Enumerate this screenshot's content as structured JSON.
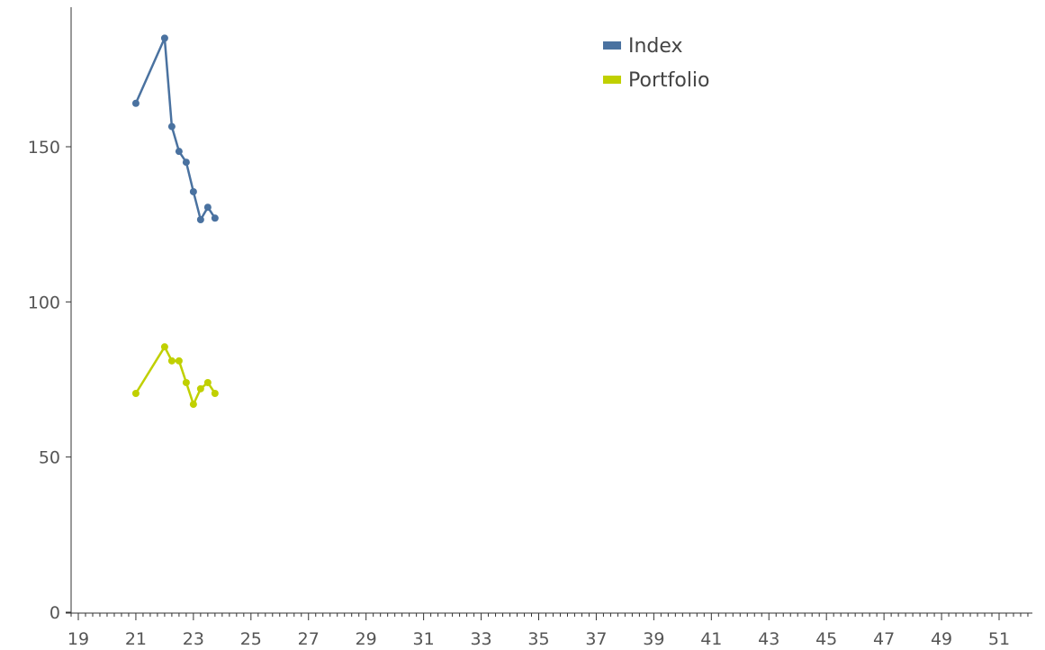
{
  "chart_data": {
    "type": "line",
    "title": "",
    "xlabel": "",
    "ylabel": "",
    "xlim": [
      18.6,
      52.9
    ],
    "ylim": [
      0,
      190
    ],
    "x_ticks": [
      19,
      21,
      23,
      25,
      27,
      29,
      31,
      33,
      35,
      37,
      39,
      41,
      43,
      45,
      47,
      49,
      51
    ],
    "x_minor_step": 0.25,
    "y_ticks": [
      0,
      50,
      100,
      150
    ],
    "grid": false,
    "legend_position": "top-center",
    "series": [
      {
        "name": "Index",
        "color": "#4a72a0",
        "points": [
          {
            "x": 21.0,
            "y": 164
          },
          {
            "x": 22.0,
            "y": 185
          },
          {
            "x": 22.25,
            "y": 156.5
          },
          {
            "x": 22.5,
            "y": 148.5
          },
          {
            "x": 22.75,
            "y": 145
          },
          {
            "x": 23.0,
            "y": 135.5
          },
          {
            "x": 23.25,
            "y": 126.5
          },
          {
            "x": 23.5,
            "y": 130.5
          },
          {
            "x": 23.75,
            "y": 127
          }
        ]
      },
      {
        "name": "Portfolio",
        "color": "#c0d000",
        "points": [
          {
            "x": 21.0,
            "y": 70.5
          },
          {
            "x": 22.0,
            "y": 85.5
          },
          {
            "x": 22.25,
            "y": 81
          },
          {
            "x": 22.5,
            "y": 81
          },
          {
            "x": 22.75,
            "y": 74
          },
          {
            "x": 23.0,
            "y": 67
          },
          {
            "x": 23.25,
            "y": 72
          },
          {
            "x": 23.5,
            "y": 74
          },
          {
            "x": 23.75,
            "y": 70.5
          }
        ]
      }
    ]
  }
}
